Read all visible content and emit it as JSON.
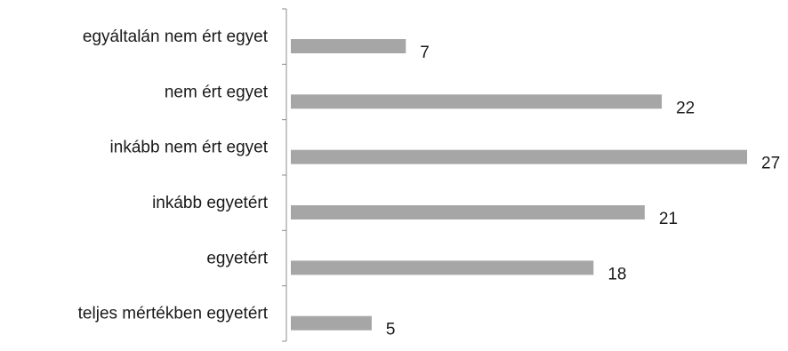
{
  "chart_data": {
    "type": "bar",
    "orientation": "horizontal",
    "categories": [
      "egyáltalán nem ért egyet",
      "nem ért egyet",
      "inkább nem ért egyet",
      "inkább egyetért",
      "egyetért",
      "teljes mértékben egyetért"
    ],
    "values": [
      7,
      22,
      27,
      21,
      18,
      5
    ],
    "title": "",
    "xlabel": "",
    "ylabel": "",
    "xlim": [
      0,
      27
    ],
    "grid": false,
    "legend": "none",
    "data_labels": true,
    "colors": {
      "bar": "#a6a6a6",
      "axis": "#8c8c8c",
      "text": "#1a1a1a"
    }
  }
}
